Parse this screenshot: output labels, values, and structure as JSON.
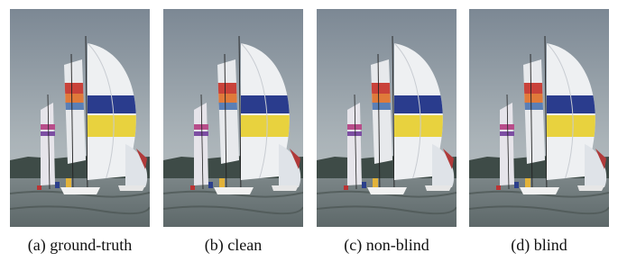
{
  "panels": [
    {
      "caption": "(a) ground-truth"
    },
    {
      "caption": "(b) clean"
    },
    {
      "caption": "(c) non-blind"
    },
    {
      "caption": "(d) blind"
    }
  ]
}
